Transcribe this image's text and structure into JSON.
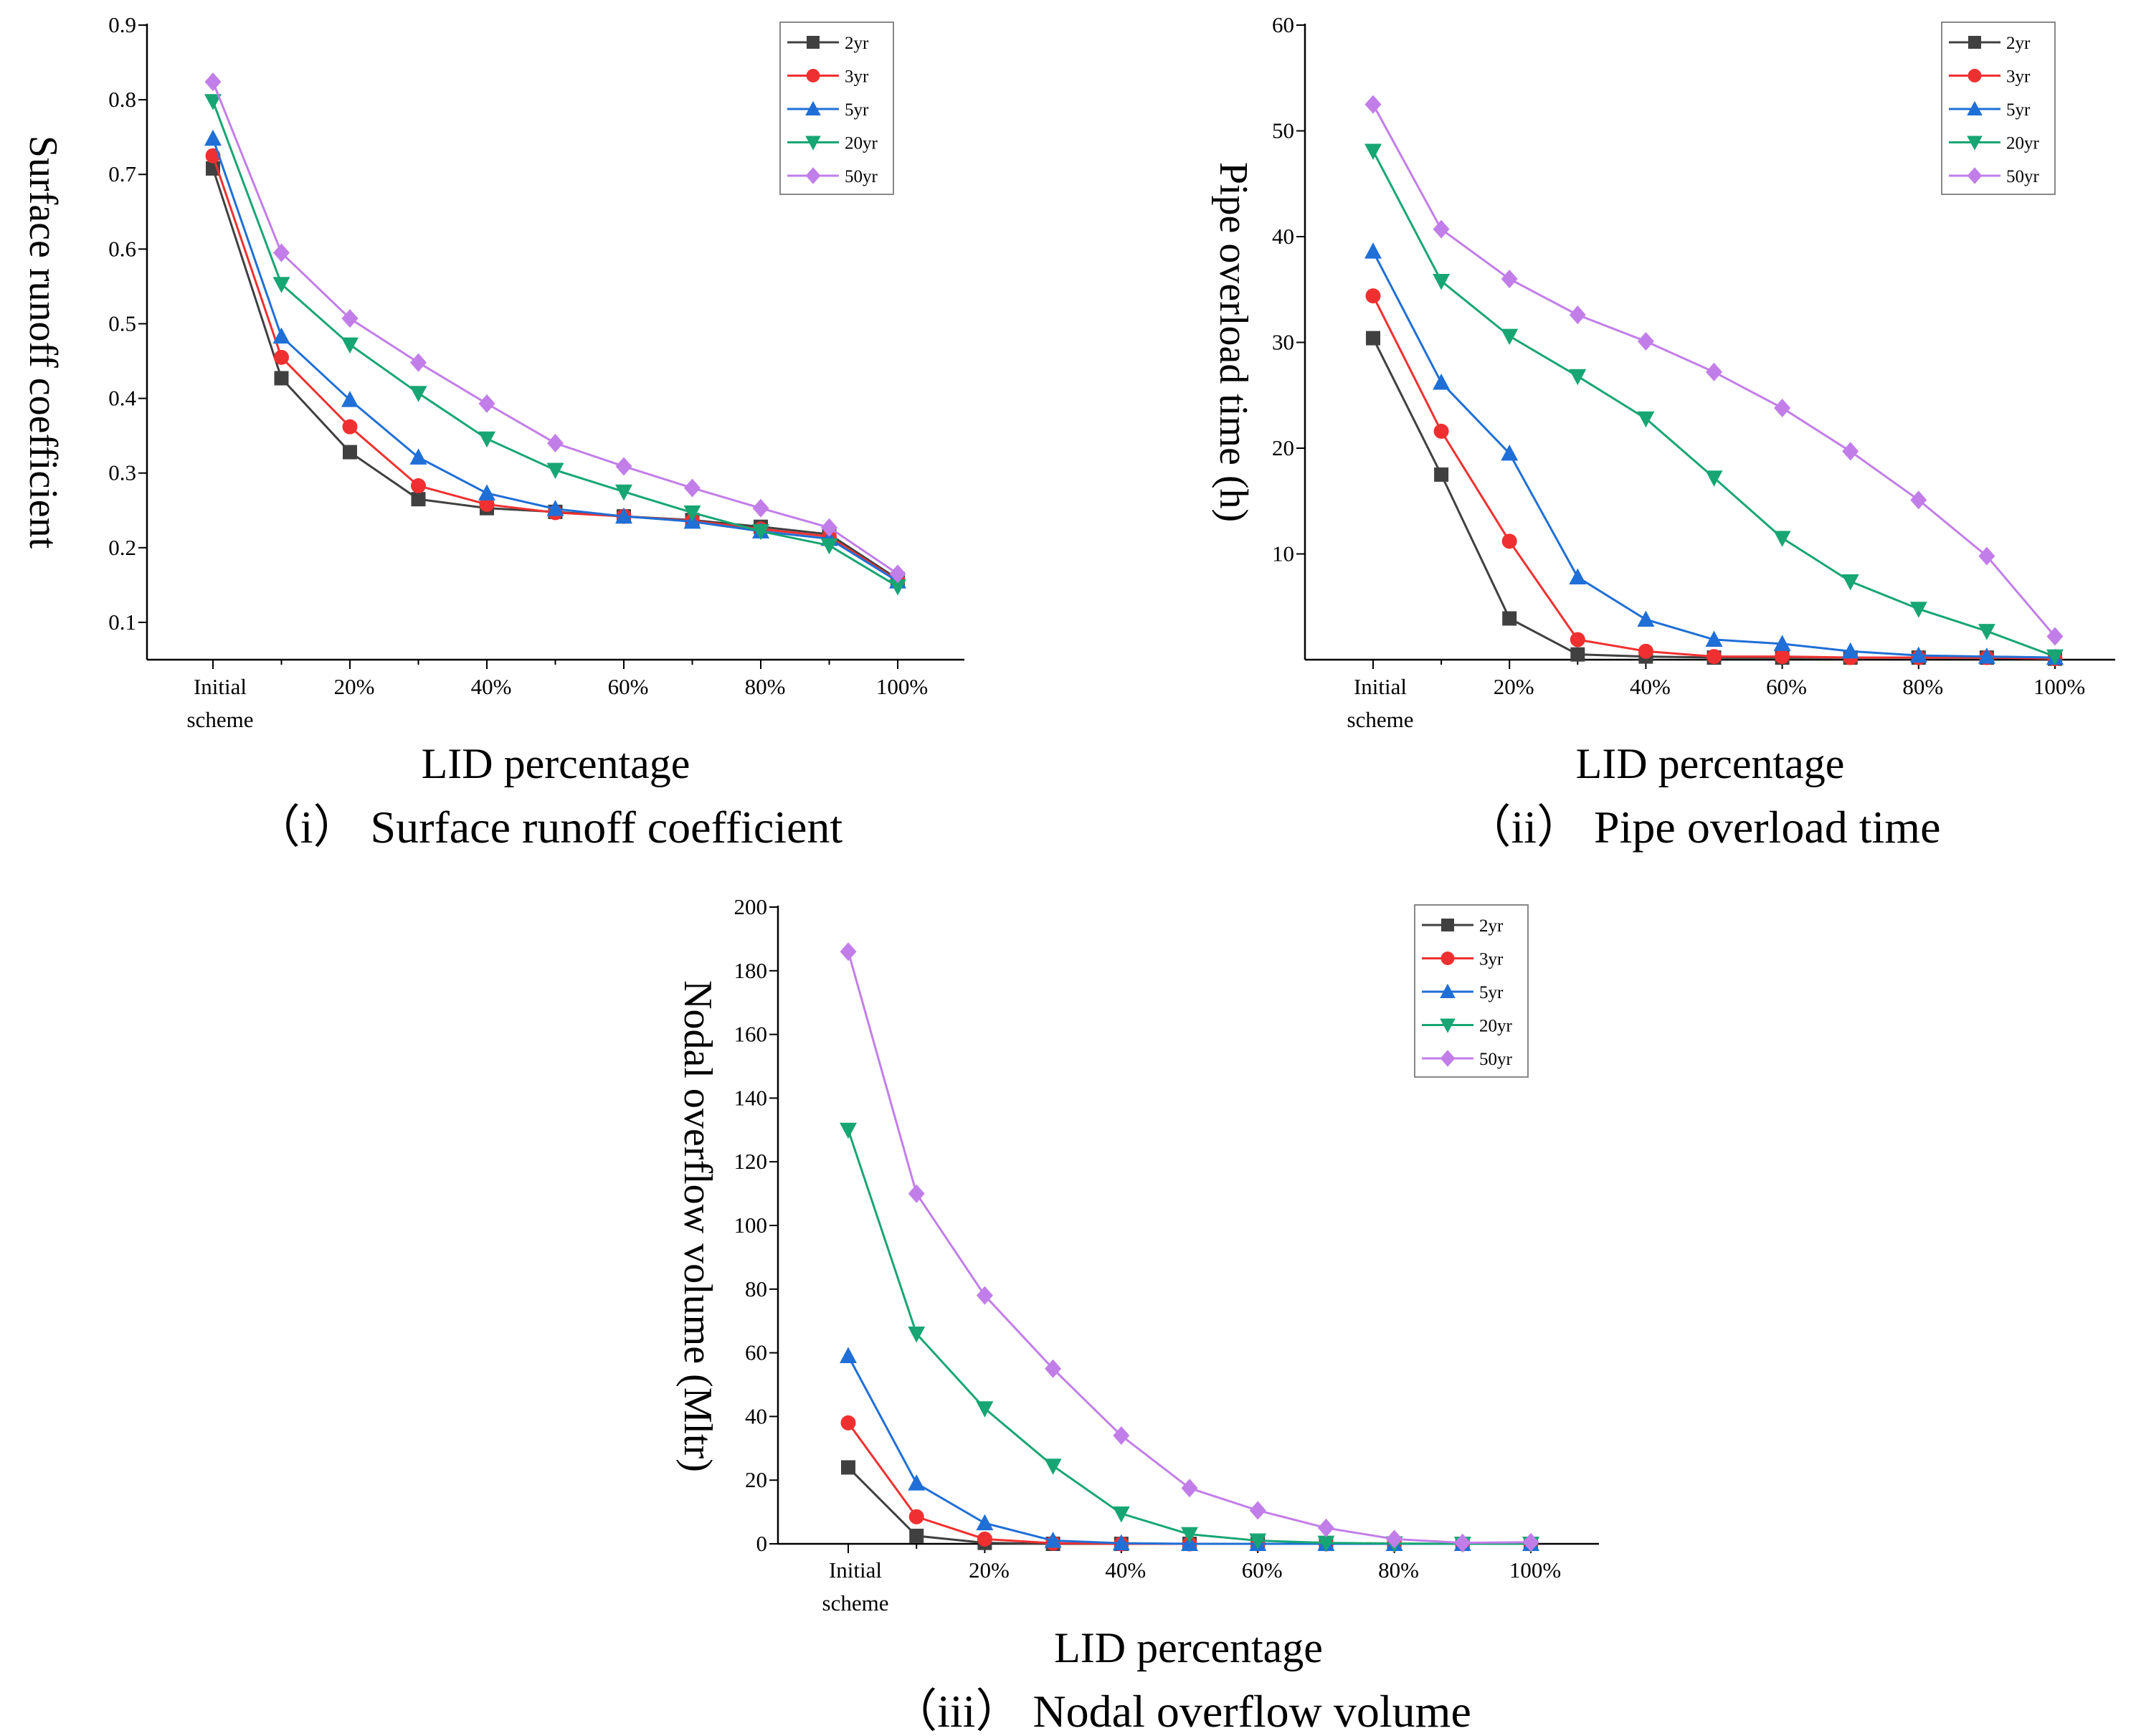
{
  "chart_data": [
    {
      "type": "line",
      "caption": "（i） Surface runoff coefficient",
      "xlabel": "LID percentage",
      "ylabel": "Surface runoff coefficient",
      "x_tick_labels": [
        "Initial\nscheme",
        "20%",
        "40%",
        "60%",
        "80%",
        "100%"
      ],
      "categories": [
        "Initial scheme",
        "10%",
        "20%",
        "30%",
        "40%",
        "50%",
        "60%",
        "70%",
        "80%",
        "90%",
        "100%"
      ],
      "y_ticks": [
        0.1,
        0.2,
        0.3,
        0.4,
        0.5,
        0.6,
        0.7,
        0.8,
        0.9
      ],
      "ylim": [
        0.05,
        0.9
      ],
      "legend_position": "top-right",
      "series": [
        {
          "name": "2yr",
          "color": "#404040",
          "marker": "square",
          "values": [
            0.708,
            0.427,
            0.328,
            0.265,
            0.253,
            0.248,
            0.242,
            0.237,
            0.228,
            0.218,
            0.158
          ]
        },
        {
          "name": "3yr",
          "color": "#f03030",
          "marker": "circle",
          "values": [
            0.725,
            0.455,
            0.362,
            0.283,
            0.258,
            0.247,
            0.242,
            0.236,
            0.225,
            0.215,
            0.156
          ]
        },
        {
          "name": "5yr",
          "color": "#1f6fd6",
          "marker": "triangle-up",
          "values": [
            0.748,
            0.483,
            0.398,
            0.321,
            0.273,
            0.252,
            0.242,
            0.235,
            0.222,
            0.212,
            0.155
          ]
        },
        {
          "name": "20yr",
          "color": "#17a673",
          "marker": "triangle-down",
          "values": [
            0.798,
            0.553,
            0.472,
            0.407,
            0.346,
            0.304,
            0.275,
            0.247,
            0.222,
            0.203,
            0.148
          ]
        },
        {
          "name": "50yr",
          "color": "#c27ee8",
          "marker": "diamond",
          "values": [
            0.824,
            0.595,
            0.507,
            0.448,
            0.393,
            0.34,
            0.309,
            0.28,
            0.253,
            0.227,
            0.165
          ]
        }
      ]
    },
    {
      "type": "line",
      "caption": "（ii） Pipe overload time",
      "xlabel": "LID percentage",
      "ylabel": "Pipe overload time (h)",
      "x_tick_labels": [
        "Initial\nscheme",
        "20%",
        "40%",
        "60%",
        "80%",
        "100%"
      ],
      "categories": [
        "Initial scheme",
        "10%",
        "20%",
        "30%",
        "40%",
        "50%",
        "60%",
        "70%",
        "80%",
        "90%",
        "100%"
      ],
      "y_ticks": [
        10,
        20,
        30,
        40,
        50,
        60
      ],
      "ylim": [
        0,
        60
      ],
      "legend_position": "top-right",
      "series": [
        {
          "name": "2yr",
          "color": "#404040",
          "marker": "square",
          "values": [
            30.4,
            17.5,
            3.9,
            0.5,
            0.3,
            0.2,
            0.2,
            0.2,
            0.2,
            0.2,
            0.1
          ]
        },
        {
          "name": "3yr",
          "color": "#f03030",
          "marker": "circle",
          "values": [
            34.4,
            21.6,
            11.2,
            1.9,
            0.8,
            0.3,
            0.3,
            0.2,
            0.2,
            0.2,
            0.1
          ]
        },
        {
          "name": "5yr",
          "color": "#1f6fd6",
          "marker": "triangle-up",
          "values": [
            38.6,
            26.2,
            19.5,
            7.8,
            3.8,
            1.9,
            1.5,
            0.8,
            0.4,
            0.3,
            0.2
          ]
        },
        {
          "name": "20yr",
          "color": "#17a673",
          "marker": "triangle-down",
          "values": [
            48.1,
            35.8,
            30.6,
            26.8,
            22.8,
            17.2,
            11.5,
            7.4,
            4.8,
            2.7,
            0.3
          ]
        },
        {
          "name": "50yr",
          "color": "#c27ee8",
          "marker": "diamond",
          "values": [
            52.5,
            40.7,
            36.0,
            32.6,
            30.1,
            27.2,
            23.8,
            19.7,
            15.1,
            9.8,
            2.2
          ]
        }
      ]
    },
    {
      "type": "line",
      "caption": "（iii） Nodal overflow volume",
      "xlabel": "LID percentage",
      "ylabel": "Nodal overflow volume (Mltr)",
      "x_tick_labels": [
        "Initial\nscheme",
        "20%",
        "40%",
        "60%",
        "80%",
        "100%"
      ],
      "categories": [
        "Initial scheme",
        "10%",
        "20%",
        "30%",
        "40%",
        "50%",
        "60%",
        "70%",
        "80%",
        "90%",
        "100%"
      ],
      "y_ticks": [
        0,
        20,
        40,
        60,
        80,
        100,
        120,
        140,
        160,
        180,
        200
      ],
      "ylim": [
        0,
        200
      ],
      "legend_position": "top-right",
      "series": [
        {
          "name": "2yr",
          "color": "#404040",
          "marker": "square",
          "values": [
            24,
            2.5,
            0.3,
            0,
            0,
            0,
            0,
            0,
            0,
            0,
            0
          ]
        },
        {
          "name": "3yr",
          "color": "#f03030",
          "marker": "circle",
          "values": [
            38,
            8.5,
            1.5,
            0.2,
            0,
            0,
            0,
            0,
            0,
            0,
            0
          ]
        },
        {
          "name": "5yr",
          "color": "#1f6fd6",
          "marker": "triangle-up",
          "values": [
            59,
            19,
            6.5,
            1.0,
            0.2,
            0,
            0,
            0,
            0,
            0,
            0
          ]
        },
        {
          "name": "20yr",
          "color": "#17a673",
          "marker": "triangle-down",
          "values": [
            130,
            66,
            42.5,
            24.5,
            9.5,
            3.0,
            1.0,
            0.3,
            0.1,
            0,
            0
          ]
        },
        {
          "name": "50yr",
          "color": "#c27ee8",
          "marker": "diamond",
          "values": [
            186,
            110,
            78,
            55,
            34,
            17.5,
            10.5,
            5.0,
            1.5,
            0.3,
            0.5
          ]
        }
      ]
    }
  ]
}
